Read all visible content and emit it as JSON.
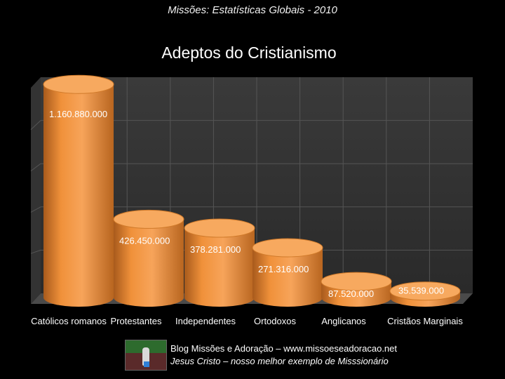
{
  "header": {
    "subtitle": "Missões: Estatísticas Globais - 2010"
  },
  "chart_data": {
    "type": "bar",
    "title": "Adeptos do Cristianismo",
    "xlabel": "",
    "ylabel": "",
    "categories": [
      "Católicos romanos",
      "Protestantes",
      "Independentes",
      "Ortodoxos",
      "Anglicanos",
      "Cristãos Marginais"
    ],
    "values": [
      1160880000,
      426450000,
      378281000,
      271316000,
      87520000,
      35539000
    ],
    "value_labels": [
      "1.160.880.000",
      "426.450.000",
      "378.281.000",
      "271.316.000",
      "87.520.000",
      "35.539.000"
    ],
    "ylim": [
      0,
      1200000000
    ],
    "grid": true,
    "legend": "none",
    "bar_color": "#f0913a",
    "bar_top_color": "#f7a95f",
    "bar_dark_color": "#b85f18"
  },
  "footer": {
    "line1": "Blog Missões e Adoração – www.missoeseadoracao.net",
    "line2": "Jesus Cristo – nosso melhor exemplo de Misssionário"
  }
}
